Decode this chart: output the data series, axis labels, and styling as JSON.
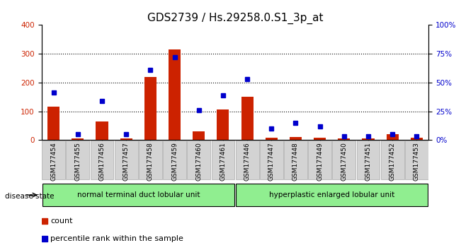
{
  "title": "GDS2739 / Hs.29258.0.S1_3p_at",
  "samples": [
    "GSM177454",
    "GSM177455",
    "GSM177456",
    "GSM177457",
    "GSM177458",
    "GSM177459",
    "GSM177460",
    "GSM177461",
    "GSM177446",
    "GSM177447",
    "GSM177448",
    "GSM177449",
    "GSM177450",
    "GSM177451",
    "GSM177452",
    "GSM177453"
  ],
  "counts": [
    115,
    5,
    65,
    5,
    220,
    315,
    30,
    105,
    150,
    8,
    10,
    8,
    5,
    5,
    20,
    8
  ],
  "percentiles": [
    41,
    5,
    34,
    5,
    61,
    72,
    26,
    39,
    53,
    10,
    15,
    12,
    3,
    3,
    5,
    3
  ],
  "group1_label": "normal terminal duct lobular unit",
  "group1_count": 8,
  "group2_label": "hyperplastic enlarged lobular unit",
  "group2_count": 8,
  "disease_state_label": "disease state",
  "legend_count": "count",
  "legend_percentile": "percentile rank within the sample",
  "ylim_left": [
    0,
    400
  ],
  "ylim_right": [
    0,
    100
  ],
  "yticks_left": [
    0,
    100,
    200,
    300,
    400
  ],
  "yticks_right": [
    0,
    25,
    50,
    75,
    100
  ],
  "ytick_labels_right": [
    "0%",
    "25%",
    "50%",
    "75%",
    "100%"
  ],
  "bar_color_count": "#cc2200",
  "bar_color_pct": "#0000cc",
  "bg_plot": "#ffffff",
  "group1_color": "#90ee90",
  "group2_color": "#90ee90",
  "title_fontsize": 11,
  "tick_fontsize": 7.5,
  "label_fontsize": 8
}
